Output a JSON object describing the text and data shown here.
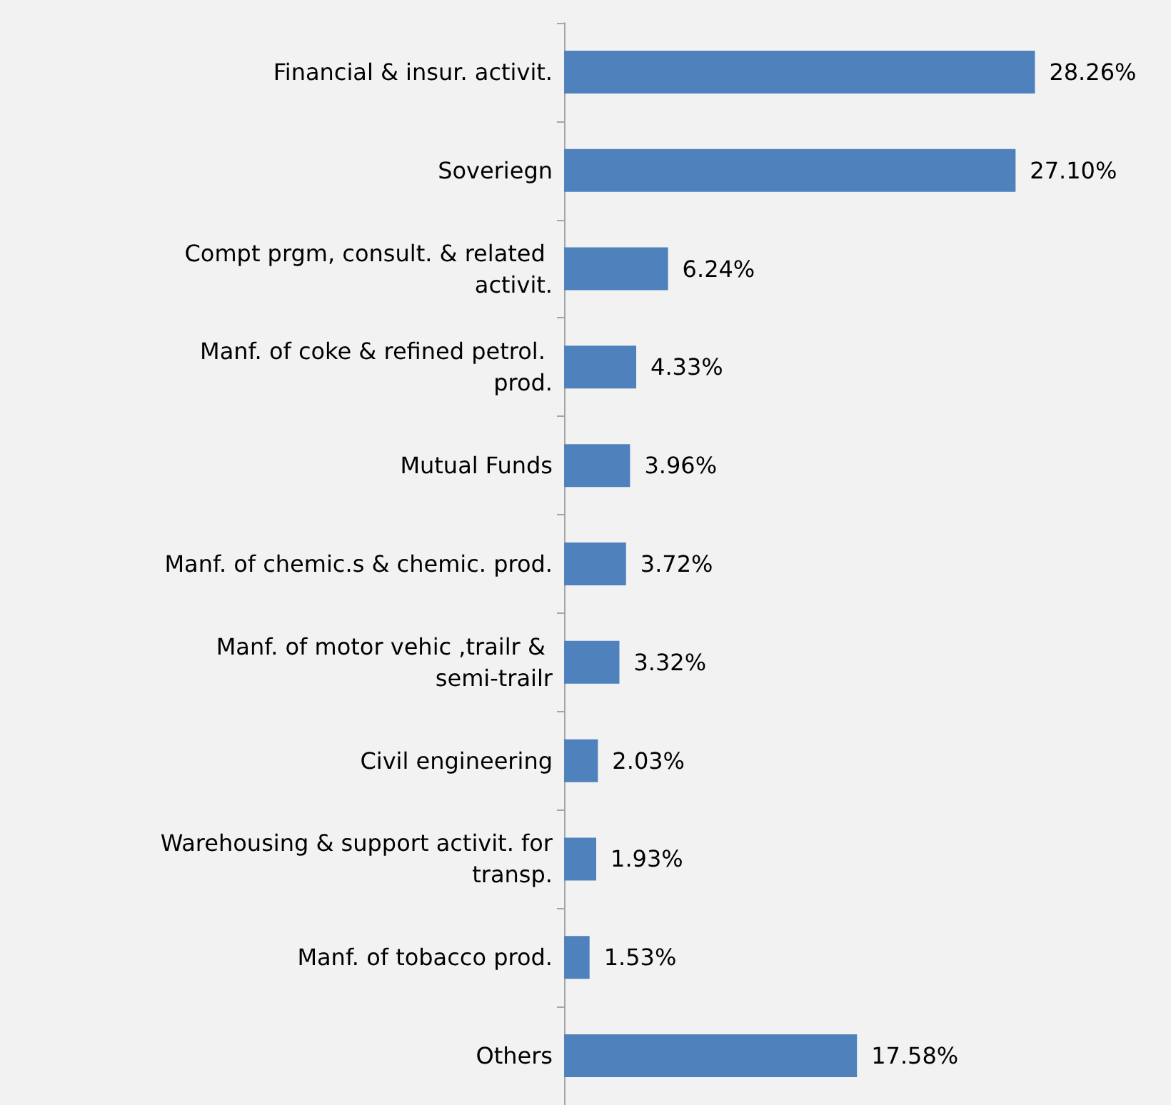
{
  "chart_data": {
    "type": "bar",
    "orientation": "horizontal",
    "categories": [
      "Financial & insur. activit.",
      "Soveriegn",
      "Compt prgm, consult. & related activit.",
      "Manf. of coke & refined petrol. prod.",
      "Mutual Funds",
      "Manf. of chemic.s & chemic. prod.",
      "Manf. of motor vehic ,trailr & semi-trailr",
      "Civil engineering",
      "Warehousing & support activit. for transp.",
      "Manf. of tobacco prod.",
      "Others"
    ],
    "values": [
      28.26,
      27.1,
      6.24,
      4.33,
      3.96,
      3.72,
      3.32,
      2.03,
      1.93,
      1.53,
      17.58
    ],
    "value_labels": [
      "28.26%",
      "27.10%",
      "6.24%",
      "4.33%",
      "3.96%",
      "3.72%",
      "3.32%",
      "2.03%",
      "1.93%",
      "1.53%",
      "17.58%"
    ],
    "color": "#4f81bd"
  }
}
